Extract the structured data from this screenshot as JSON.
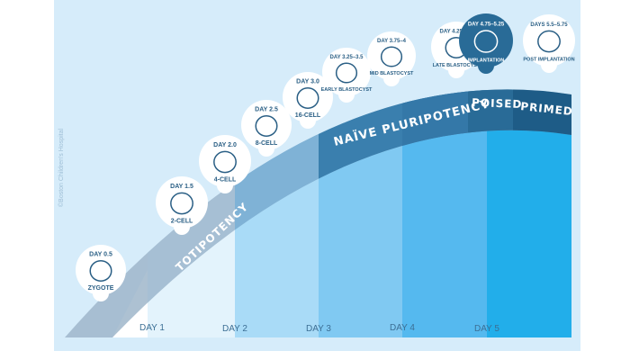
{
  "credit": "©Boston Children's Hospital",
  "days": [
    "DAY 1",
    "DAY 2",
    "DAY 3",
    "DAY 4",
    "DAY 5"
  ],
  "phases": {
    "totipotency": "TOTIPOTENCY",
    "naive": "NAÏVE PLURIPOTENCY",
    "poised": "POISED",
    "primed": "PRIMED"
  },
  "stages": [
    {
      "day": "DAY 0.5",
      "name": "ZYGOTE"
    },
    {
      "day": "DAY 1.5",
      "name": "2-CELL"
    },
    {
      "day": "DAY 2.0",
      "name": "4-CELL"
    },
    {
      "day": "DAY 2.5",
      "name": "8-CELL"
    },
    {
      "day": "DAY 3.0",
      "name": "16-CELL"
    },
    {
      "day": "DAY 3.25–3.5",
      "name": "EARLY BLASTOCYST"
    },
    {
      "day": "DAY 3.75–4",
      "name": "MID BLASTOCYST"
    },
    {
      "day": "DAY 4.25–4.5",
      "name": "LATE BLASTOCYST"
    },
    {
      "day": "DAY 4.75–5.25",
      "name": "IMPLANTATION"
    },
    {
      "day": "DAYS 5.5–5.75",
      "name": "POST IMPLANTATION"
    }
  ],
  "colors": {
    "panel": "#d6ecfa",
    "col1": "#e3f3fc",
    "col2": "#a9dbf7",
    "col3": "#80c9f2",
    "col4": "#55b9ef",
    "col5": "#22aeea",
    "band": "#3a7fae",
    "poised": "#296b97",
    "primed": "#1e5c87",
    "ink": "#2a5f85"
  }
}
